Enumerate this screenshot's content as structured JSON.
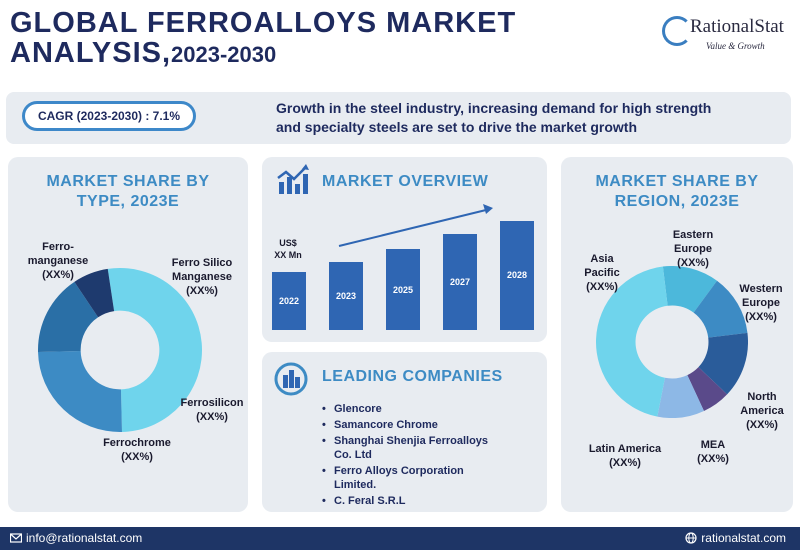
{
  "header": {
    "title_line1": "GLOBAL FERROALLOYS MARKET",
    "title_line2": "ANALYSIS,",
    "title_years": "2023-2030",
    "logo_name": "RationalStat",
    "logo_tagline": "Value & Growth"
  },
  "banner": {
    "cagr": "CAGR (2023-2030) : 7.1%",
    "text_line1": "Growth in the steel industry, increasing demand for high strength",
    "text_line2": "and specialty steels are set to drive the market growth"
  },
  "type_panel": {
    "title_line1": "MARKET SHARE BY",
    "title_line2": "TYPE, 2023E",
    "segments": [
      {
        "label_line1": "Ferro-",
        "label_line2": "manganese",
        "label_line3": "(XX%)",
        "share": 0.52,
        "color": "#6fd4ec"
      },
      {
        "label_line1": "Ferro Silico",
        "label_line2": "Manganese",
        "label_line3": "(XX%)",
        "share": 0.25,
        "color": "#3d8bc4"
      },
      {
        "label_line1": "Ferrosilicon",
        "label_line2": "(XX%)",
        "label_line3": "",
        "share": 0.16,
        "color": "#2a6fa6"
      },
      {
        "label_line1": "Ferrochrome",
        "label_line2": "(XX%)",
        "label_line3": "",
        "share": 0.07,
        "color": "#1e3a6e"
      }
    ]
  },
  "overview_panel": {
    "title": "MARKET OVERVIEW",
    "unit_line1": "US$",
    "unit_line2": "XX Mn",
    "icon": "rising-chart-icon"
  },
  "chart_data": {
    "type": "bar",
    "categories": [
      "2022",
      "2023",
      "2025",
      "2027",
      "2028"
    ],
    "values": [
      0.45,
      0.52,
      0.62,
      0.74,
      0.84
    ],
    "title": "MARKET OVERVIEW",
    "ylabel": "US$ XX Mn",
    "xlabel": "",
    "ylim": [
      0,
      1
    ],
    "color": "#2f66b3"
  },
  "leading_panel": {
    "title": "LEADING COMPANIES",
    "icon": "buildings-icon",
    "companies": [
      {
        "line1": "Glencore",
        "line2": ""
      },
      {
        "line1": "Samancore Chrome",
        "line2": ""
      },
      {
        "line1": "Shanghai Shenjia Ferroalloys",
        "line2": "Co. Ltd"
      },
      {
        "line1": "Ferro Alloys Corporation",
        "line2": "Limited."
      },
      {
        "line1": "C. Feral S.R.L",
        "line2": ""
      }
    ]
  },
  "region_panel": {
    "title_line1": "MARKET SHARE BY",
    "title_line2": "REGION, 2023E",
    "segments": [
      {
        "label_line1": "Eastern",
        "label_line2": "Europe",
        "label_line3": "(XX%)",
        "share": 0.12,
        "color": "#4cb8db"
      },
      {
        "label_line1": "Western",
        "label_line2": "Europe",
        "label_line3": "(XX%)",
        "share": 0.13,
        "color": "#3d8bc4"
      },
      {
        "label_line1": "North",
        "label_line2": "America",
        "label_line3": "(XX%)",
        "share": 0.14,
        "color": "#2a5c9a"
      },
      {
        "label_line1": "MEA",
        "label_line2": "(XX%)",
        "label_line3": "",
        "share": 0.06,
        "color": "#5a4a8a"
      },
      {
        "label_line1": "Latin America",
        "label_line2": "(XX%)",
        "label_line3": "",
        "share": 0.1,
        "color": "#8db8e6"
      },
      {
        "label_line1": "Asia",
        "label_line2": "Pacific",
        "label_line3": "(XX%)",
        "share": 0.45,
        "color": "#6fd4ec"
      }
    ]
  },
  "footer": {
    "email": "info@rationalstat.com",
    "website": "rationalstat.com"
  }
}
